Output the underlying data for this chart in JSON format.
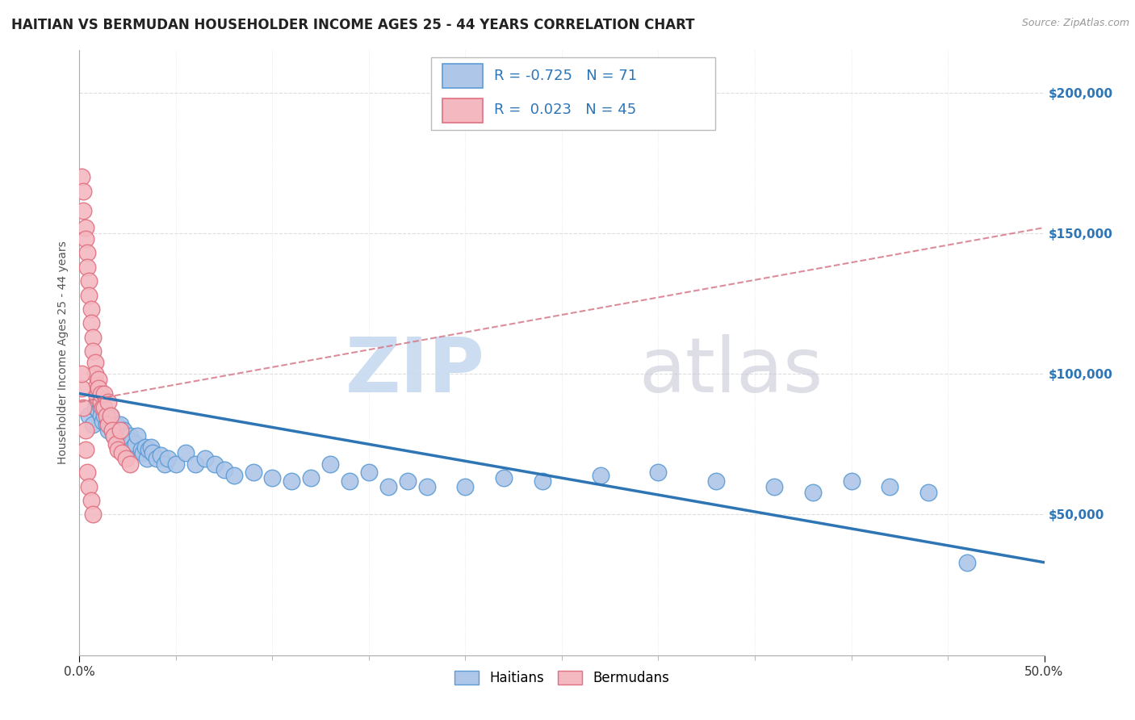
{
  "title": "HAITIAN VS BERMUDAN HOUSEHOLDER INCOME AGES 25 - 44 YEARS CORRELATION CHART",
  "source": "Source: ZipAtlas.com",
  "ylabel": "Householder Income Ages 25 - 44 years",
  "xlim": [
    0.0,
    0.5
  ],
  "ylim": [
    0,
    215000
  ],
  "xtick_positions": [
    0.0,
    0.5
  ],
  "xtick_labels": [
    "0.0%",
    "50.0%"
  ],
  "yticks": [
    0,
    50000,
    100000,
    150000,
    200000
  ],
  "ytick_labels": [
    "",
    "$50,000",
    "$100,000",
    "$150,000",
    "$200,000"
  ],
  "haitian_color": "#aec6e8",
  "haitian_edge": "#5b9bd5",
  "bermudan_color": "#f4b8c1",
  "bermudan_edge": "#e07080",
  "trend_haitian_color": "#2e75b6",
  "trend_bermudan_color": "#d47080",
  "R_haitian": -0.725,
  "N_haitian": 71,
  "R_bermudan": 0.023,
  "N_bermudan": 45,
  "background_color": "#ffffff",
  "grid_color": "#dddddd",
  "haitian_trend_x0": 0.0,
  "haitian_trend_y0": 93000,
  "haitian_trend_x1": 0.5,
  "haitian_trend_y1": 33000,
  "bermudan_trend_x0": 0.0,
  "bermudan_trend_y0": 90000,
  "bermudan_trend_x1": 0.5,
  "bermudan_trend_y1": 152000,
  "haitian_x": [
    0.005,
    0.007,
    0.008,
    0.009,
    0.01,
    0.01,
    0.011,
    0.011,
    0.012,
    0.013,
    0.013,
    0.014,
    0.014,
    0.015,
    0.015,
    0.016,
    0.016,
    0.017,
    0.018,
    0.019,
    0.02,
    0.021,
    0.022,
    0.023,
    0.024,
    0.025,
    0.026,
    0.027,
    0.028,
    0.029,
    0.03,
    0.032,
    0.033,
    0.034,
    0.035,
    0.036,
    0.037,
    0.038,
    0.04,
    0.042,
    0.044,
    0.046,
    0.05,
    0.055,
    0.06,
    0.065,
    0.07,
    0.075,
    0.08,
    0.09,
    0.1,
    0.11,
    0.12,
    0.13,
    0.14,
    0.15,
    0.16,
    0.17,
    0.18,
    0.2,
    0.22,
    0.24,
    0.27,
    0.3,
    0.33,
    0.36,
    0.38,
    0.4,
    0.42,
    0.44,
    0.46
  ],
  "haitian_y": [
    85000,
    82000,
    88000,
    90000,
    87000,
    92000,
    88000,
    85000,
    83000,
    88000,
    85000,
    82000,
    86000,
    80000,
    83000,
    82000,
    85000,
    80000,
    78000,
    82000,
    80000,
    82000,
    78000,
    80000,
    78000,
    76000,
    78000,
    76000,
    74000,
    75000,
    78000,
    73000,
    72000,
    74000,
    70000,
    73000,
    74000,
    72000,
    70000,
    71000,
    68000,
    70000,
    68000,
    72000,
    68000,
    70000,
    68000,
    66000,
    64000,
    65000,
    63000,
    62000,
    63000,
    68000,
    62000,
    65000,
    60000,
    62000,
    60000,
    60000,
    63000,
    62000,
    64000,
    65000,
    62000,
    60000,
    58000,
    62000,
    60000,
    58000,
    33000
  ],
  "bermudan_x": [
    0.001,
    0.002,
    0.002,
    0.003,
    0.003,
    0.004,
    0.004,
    0.005,
    0.005,
    0.006,
    0.006,
    0.007,
    0.007,
    0.008,
    0.008,
    0.009,
    0.009,
    0.01,
    0.01,
    0.011,
    0.011,
    0.012,
    0.013,
    0.013,
    0.014,
    0.015,
    0.015,
    0.016,
    0.017,
    0.018,
    0.019,
    0.02,
    0.021,
    0.022,
    0.024,
    0.026,
    0.001,
    0.001,
    0.002,
    0.003,
    0.003,
    0.004,
    0.005,
    0.006,
    0.007
  ],
  "bermudan_y": [
    170000,
    165000,
    158000,
    152000,
    148000,
    143000,
    138000,
    133000,
    128000,
    123000,
    118000,
    113000,
    108000,
    104000,
    100000,
    96000,
    92000,
    98000,
    95000,
    90000,
    93000,
    88000,
    88000,
    93000,
    85000,
    90000,
    82000,
    85000,
    80000,
    78000,
    75000,
    73000,
    80000,
    72000,
    70000,
    68000,
    95000,
    100000,
    88000,
    80000,
    73000,
    65000,
    60000,
    55000,
    50000
  ]
}
